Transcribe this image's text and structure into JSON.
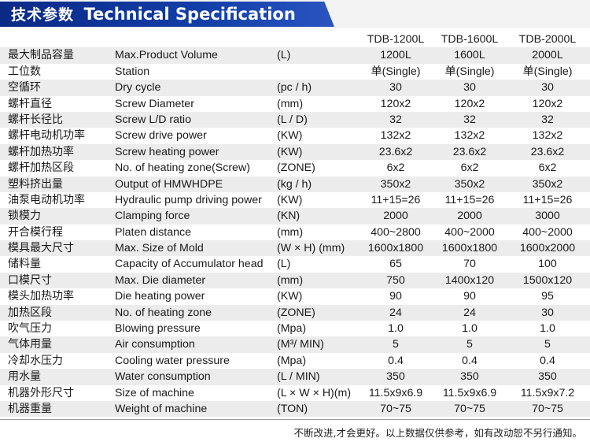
{
  "header": {
    "title_cn": "技术参数",
    "title_en": "Technical Specification"
  },
  "models": [
    "TDB-1200L",
    "TDB-1600L",
    "TDB-2000L"
  ],
  "rows": [
    {
      "cn": "最大制品容量",
      "en": "Max.Product Volume",
      "unit": "(L)",
      "v": [
        "1200L",
        "1600L",
        "2000L"
      ]
    },
    {
      "cn": "工位数",
      "en": "Station",
      "unit": "",
      "v": [
        "单(Single)",
        "单(Single)",
        "单(Single)"
      ]
    },
    {
      "cn": "空循环",
      "en": "Dry cycle",
      "unit": "(pc / h)",
      "v": [
        "30",
        "30",
        "30"
      ]
    },
    {
      "cn": "螺杆直径",
      "en": "Screw Diameter",
      "unit": "(mm)",
      "v": [
        "120x2",
        "120x2",
        "120x2"
      ]
    },
    {
      "cn": "螺杆长径比",
      "en": "Screw L/D ratio",
      "unit": "(L / D)",
      "v": [
        "32",
        "32",
        "32"
      ]
    },
    {
      "cn": "螺杆电动机功率",
      "en": "Screw drive power",
      "unit": "(KW)",
      "v": [
        "132x2",
        "132x2",
        "132x2"
      ]
    },
    {
      "cn": "螺杆加热功率",
      "en": "Screw heating power",
      "unit": "(KW)",
      "v": [
        "23.6x2",
        "23.6x2",
        "23.6x2"
      ]
    },
    {
      "cn": "螺杆加热区段",
      "en": "No. of heating zone(Screw)",
      "unit": "(ZONE)",
      "v": [
        "6x2",
        "6x2",
        "6x2"
      ]
    },
    {
      "cn": "塑料挤出量",
      "en": "Output of HMWHDPE",
      "unit": "(kg / h)",
      "v": [
        "350x2",
        "350x2",
        "350x2"
      ]
    },
    {
      "cn": "油泵电动机功率",
      "en": "Hydraulic pump driving power",
      "unit": "(KW)",
      "v": [
        "11+15=26",
        "11+15=26",
        "11+15=26"
      ]
    },
    {
      "cn": "锁模力",
      "en": "Clamping force",
      "unit": "(KN)",
      "v": [
        "2000",
        "2000",
        "3000"
      ]
    },
    {
      "cn": "开合模行程",
      "en": "Platen distance",
      "unit": "(mm)",
      "v": [
        "400~2800",
        "400~2000",
        "400~2000"
      ]
    },
    {
      "cn": "模具最大尺寸",
      "en": "Max. Size of Mold",
      "unit": "(W × H) (mm)",
      "v": [
        "1600x1800",
        "1600x1800",
        "1600x2000"
      ]
    },
    {
      "cn": "储料量",
      "en": "Capacity of Accumulator head",
      "unit": "(L)",
      "v": [
        "65",
        "70",
        "100"
      ]
    },
    {
      "cn": "口模尺寸",
      "en": "Max. Die diameter",
      "unit": "(mm)",
      "v": [
        "750",
        "1400x120",
        "1500x120"
      ]
    },
    {
      "cn": "模头加热功率",
      "en": "Die heating power",
      "unit": "(KW)",
      "v": [
        "90",
        "90",
        "95"
      ]
    },
    {
      "cn": "加热区段",
      "en": "No. of heating zone",
      "unit": "(ZONE)",
      "v": [
        "24",
        "24",
        "30"
      ]
    },
    {
      "cn": "吹气压力",
      "en": "Blowing pressure",
      "unit": "(Mpa)",
      "v": [
        "1.0",
        "1.0",
        "1.0"
      ]
    },
    {
      "cn": "气体用量",
      "en": "Air consumption",
      "unit": "(M³/ MIN)",
      "v": [
        "5",
        "5",
        "5"
      ]
    },
    {
      "cn": "冷却水压力",
      "en": "Cooling water pressure",
      "unit": "(Mpa)",
      "v": [
        "0.4",
        "0.4",
        "0.4"
      ]
    },
    {
      "cn": "用水量",
      "en": "Water consumption",
      "unit": "(L / MIN)",
      "v": [
        "350",
        "350",
        "350"
      ]
    },
    {
      "cn": "机器外形尺寸",
      "en": "Size of machine",
      "unit": "(L × W × H)(m)",
      "v": [
        "11.5x9x6.9",
        "11.5x9x6.9",
        "11.5x9x7.2"
      ]
    },
    {
      "cn": "机器重量",
      "en": "Weight of machine",
      "unit": "(TON)",
      "v": [
        "70~75",
        "70~75",
        "70~75"
      ]
    }
  ],
  "footer": {
    "note": "不断改进,才会更好。以上数据仅供参考，如有改动恕不另行通知。"
  },
  "colors": {
    "header_band": "#123ea8",
    "stripe": "#ececec"
  }
}
